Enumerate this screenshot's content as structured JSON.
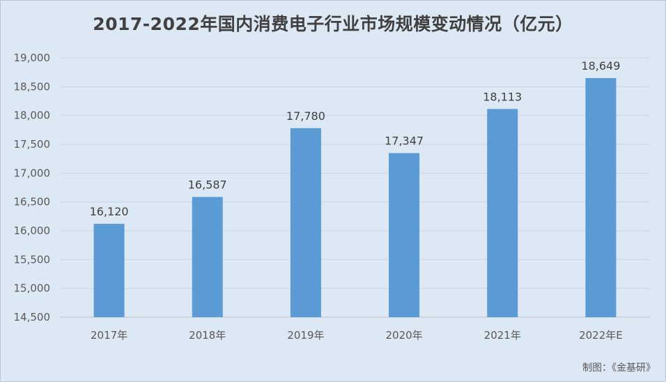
{
  "chart_data": {
    "type": "bar",
    "title": "2017-2022年国内消费电子行业市场规模变动情况（亿元）",
    "categories": [
      "2017年",
      "2018年",
      "2019年",
      "2020年",
      "2021年",
      "2022年E"
    ],
    "values": [
      16120,
      16587,
      17780,
      17347,
      18113,
      18649
    ],
    "data_labels": [
      "16,120",
      "16,587",
      "17,780",
      "17,347",
      "18,113",
      "18,649"
    ],
    "ylim": [
      14500,
      19000
    ],
    "yticks": [
      14500,
      15000,
      15500,
      16000,
      16500,
      17000,
      17500,
      18000,
      18500,
      19000
    ],
    "ytick_labels": [
      "14,500",
      "15,000",
      "15,500",
      "16,000",
      "16,500",
      "17,000",
      "17,500",
      "18,000",
      "18,500",
      "19,000"
    ],
    "xlabel": "",
    "ylabel": "",
    "grid": true,
    "legend": "none",
    "bar_color": "#5b9bd5",
    "source": "制图：《金基研》"
  }
}
